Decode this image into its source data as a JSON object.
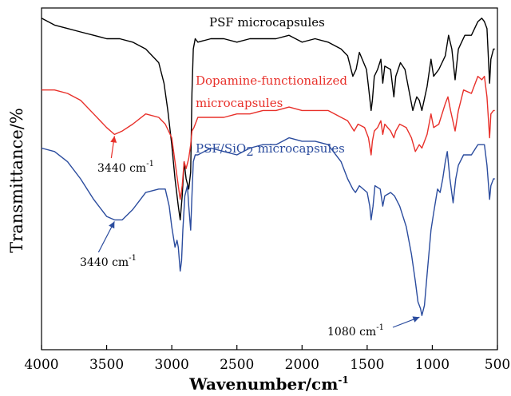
{
  "chart_data": {
    "type": "line",
    "title": "",
    "xlabel": "Wavenumber/cm",
    "xlabel_sup": "-1",
    "ylabel": "Transmittance/%",
    "xlim": [
      4000,
      500
    ],
    "x_reversed": true,
    "xticks": [
      4000,
      3500,
      3000,
      2500,
      2000,
      1500,
      1000,
      500
    ],
    "y_tick_labels_shown": false,
    "grid": false,
    "legend": "none",
    "series": [
      {
        "name": "PSF microcapsules",
        "color": "#000000",
        "label_text": "PSF microcapsules",
        "points": [
          [
            4000,
            97
          ],
          [
            3900,
            95
          ],
          [
            3800,
            94
          ],
          [
            3700,
            93
          ],
          [
            3600,
            92
          ],
          [
            3500,
            91
          ],
          [
            3400,
            91
          ],
          [
            3300,
            90
          ],
          [
            3200,
            88
          ],
          [
            3100,
            84
          ],
          [
            3060,
            78
          ],
          [
            3030,
            70
          ],
          [
            3000,
            60
          ],
          [
            2975,
            50
          ],
          [
            2950,
            42
          ],
          [
            2935,
            38
          ],
          [
            2920,
            45
          ],
          [
            2905,
            55
          ],
          [
            2890,
            50
          ],
          [
            2870,
            47
          ],
          [
            2855,
            52
          ],
          [
            2845,
            75
          ],
          [
            2835,
            88
          ],
          [
            2820,
            91
          ],
          [
            2800,
            90
          ],
          [
            2700,
            91
          ],
          [
            2600,
            91
          ],
          [
            2500,
            90
          ],
          [
            2400,
            91
          ],
          [
            2300,
            91
          ],
          [
            2200,
            91
          ],
          [
            2100,
            92
          ],
          [
            2000,
            90
          ],
          [
            1900,
            91
          ],
          [
            1800,
            90
          ],
          [
            1700,
            88
          ],
          [
            1650,
            86
          ],
          [
            1610,
            80
          ],
          [
            1585,
            82
          ],
          [
            1560,
            87
          ],
          [
            1505,
            82
          ],
          [
            1490,
            77
          ],
          [
            1470,
            70
          ],
          [
            1460,
            73
          ],
          [
            1445,
            80
          ],
          [
            1420,
            82
          ],
          [
            1395,
            85
          ],
          [
            1380,
            78
          ],
          [
            1365,
            83
          ],
          [
            1320,
            82
          ],
          [
            1295,
            74
          ],
          [
            1280,
            80
          ],
          [
            1245,
            84
          ],
          [
            1210,
            82
          ],
          [
            1180,
            76
          ],
          [
            1150,
            70
          ],
          [
            1120,
            74
          ],
          [
            1100,
            73
          ],
          [
            1080,
            70
          ],
          [
            1040,
            77
          ],
          [
            1010,
            85
          ],
          [
            990,
            80
          ],
          [
            950,
            82
          ],
          [
            900,
            86
          ],
          [
            875,
            92
          ],
          [
            850,
            88
          ],
          [
            825,
            79
          ],
          [
            800,
            88
          ],
          [
            750,
            92
          ],
          [
            700,
            92
          ],
          [
            650,
            96
          ],
          [
            620,
            97
          ],
          [
            600,
            96
          ],
          [
            580,
            94
          ],
          [
            560,
            78
          ],
          [
            550,
            85
          ],
          [
            530,
            88
          ],
          [
            520,
            88
          ]
        ]
      },
      {
        "name": "Dopamine-functionalized microcapsules",
        "color": "#e8302a",
        "label_text": [
          "Dopamine-functionalized",
          "microcapsules"
        ],
        "points": [
          [
            4000,
            76
          ],
          [
            3900,
            76
          ],
          [
            3800,
            75
          ],
          [
            3700,
            73
          ],
          [
            3600,
            69
          ],
          [
            3500,
            65
          ],
          [
            3440,
            63
          ],
          [
            3380,
            64
          ],
          [
            3300,
            66
          ],
          [
            3200,
            69
          ],
          [
            3100,
            68
          ],
          [
            3050,
            66
          ],
          [
            3000,
            62
          ],
          [
            2975,
            55
          ],
          [
            2950,
            48
          ],
          [
            2935,
            44
          ],
          [
            2920,
            48
          ],
          [
            2905,
            55
          ],
          [
            2890,
            53
          ],
          [
            2870,
            56
          ],
          [
            2855,
            60
          ],
          [
            2845,
            64
          ],
          [
            2830,
            65
          ],
          [
            2800,
            68
          ],
          [
            2700,
            68
          ],
          [
            2600,
            68
          ],
          [
            2500,
            69
          ],
          [
            2400,
            69
          ],
          [
            2300,
            70
          ],
          [
            2200,
            70
          ],
          [
            2100,
            71
          ],
          [
            2000,
            70
          ],
          [
            1900,
            70
          ],
          [
            1800,
            70
          ],
          [
            1700,
            68
          ],
          [
            1650,
            67
          ],
          [
            1600,
            64
          ],
          [
            1570,
            66
          ],
          [
            1520,
            65
          ],
          [
            1490,
            62
          ],
          [
            1470,
            57
          ],
          [
            1460,
            61
          ],
          [
            1445,
            64
          ],
          [
            1420,
            65
          ],
          [
            1395,
            67
          ],
          [
            1380,
            63
          ],
          [
            1365,
            66
          ],
          [
            1320,
            64
          ],
          [
            1295,
            62
          ],
          [
            1280,
            64
          ],
          [
            1250,
            66
          ],
          [
            1200,
            65
          ],
          [
            1160,
            62
          ],
          [
            1130,
            58
          ],
          [
            1100,
            60
          ],
          [
            1080,
            59
          ],
          [
            1040,
            63
          ],
          [
            1010,
            69
          ],
          [
            990,
            65
          ],
          [
            950,
            66
          ],
          [
            900,
            72
          ],
          [
            880,
            74
          ],
          [
            860,
            70
          ],
          [
            825,
            64
          ],
          [
            800,
            70
          ],
          [
            760,
            76
          ],
          [
            700,
            75
          ],
          [
            650,
            80
          ],
          [
            620,
            79
          ],
          [
            600,
            80
          ],
          [
            580,
            74
          ],
          [
            560,
            62
          ],
          [
            550,
            69
          ],
          [
            530,
            70
          ],
          [
            520,
            70
          ]
        ]
      },
      {
        "name": "PSF/SiO2 microcapsules",
        "color": "#2b4c9e",
        "label_text": "PSF/SiO",
        "label_sub": "2",
        "label_after": " microcapsules",
        "points": [
          [
            4000,
            59
          ],
          [
            3900,
            58
          ],
          [
            3800,
            55
          ],
          [
            3700,
            50
          ],
          [
            3600,
            44
          ],
          [
            3500,
            39
          ],
          [
            3440,
            38
          ],
          [
            3380,
            38
          ],
          [
            3300,
            41
          ],
          [
            3200,
            46
          ],
          [
            3100,
            47
          ],
          [
            3050,
            47
          ],
          [
            3020,
            42
          ],
          [
            3000,
            36
          ],
          [
            2975,
            30
          ],
          [
            2960,
            32
          ],
          [
            2950,
            30
          ],
          [
            2935,
            23
          ],
          [
            2925,
            26
          ],
          [
            2915,
            35
          ],
          [
            2900,
            45
          ],
          [
            2880,
            48
          ],
          [
            2870,
            42
          ],
          [
            2855,
            35
          ],
          [
            2845,
            45
          ],
          [
            2835,
            55
          ],
          [
            2820,
            57
          ],
          [
            2800,
            57
          ],
          [
            2700,
            59
          ],
          [
            2600,
            58
          ],
          [
            2500,
            57
          ],
          [
            2400,
            59
          ],
          [
            2300,
            60
          ],
          [
            2200,
            60
          ],
          [
            2100,
            62
          ],
          [
            2000,
            61
          ],
          [
            1900,
            61
          ],
          [
            1800,
            60
          ],
          [
            1700,
            55
          ],
          [
            1650,
            50
          ],
          [
            1610,
            47
          ],
          [
            1590,
            46
          ],
          [
            1560,
            48
          ],
          [
            1500,
            46
          ],
          [
            1480,
            42
          ],
          [
            1470,
            38
          ],
          [
            1455,
            42
          ],
          [
            1440,
            48
          ],
          [
            1400,
            47
          ],
          [
            1380,
            42
          ],
          [
            1365,
            45
          ],
          [
            1320,
            46
          ],
          [
            1290,
            45
          ],
          [
            1250,
            42
          ],
          [
            1200,
            36
          ],
          [
            1160,
            28
          ],
          [
            1130,
            20
          ],
          [
            1110,
            14
          ],
          [
            1090,
            12
          ],
          [
            1080,
            10
          ],
          [
            1060,
            13
          ],
          [
            1040,
            22
          ],
          [
            1010,
            35
          ],
          [
            990,
            40
          ],
          [
            960,
            47
          ],
          [
            940,
            46
          ],
          [
            920,
            50
          ],
          [
            900,
            55
          ],
          [
            885,
            58
          ],
          [
            865,
            50
          ],
          [
            840,
            43
          ],
          [
            820,
            50
          ],
          [
            800,
            54
          ],
          [
            760,
            57
          ],
          [
            700,
            57
          ],
          [
            650,
            60
          ],
          [
            620,
            60
          ],
          [
            600,
            60
          ],
          [
            580,
            54
          ],
          [
            560,
            44
          ],
          [
            550,
            48
          ],
          [
            530,
            50
          ],
          [
            520,
            50
          ]
        ]
      }
    ],
    "annotations": [
      {
        "text": "3440 cm",
        "sup": "-1",
        "series": 1,
        "x": 3440
      },
      {
        "text": "3440 cm",
        "sup": "-1",
        "series": 2,
        "x": 3440
      },
      {
        "text": "1080 cm",
        "sup": "-1",
        "series": 2,
        "x": 1080
      }
    ]
  }
}
